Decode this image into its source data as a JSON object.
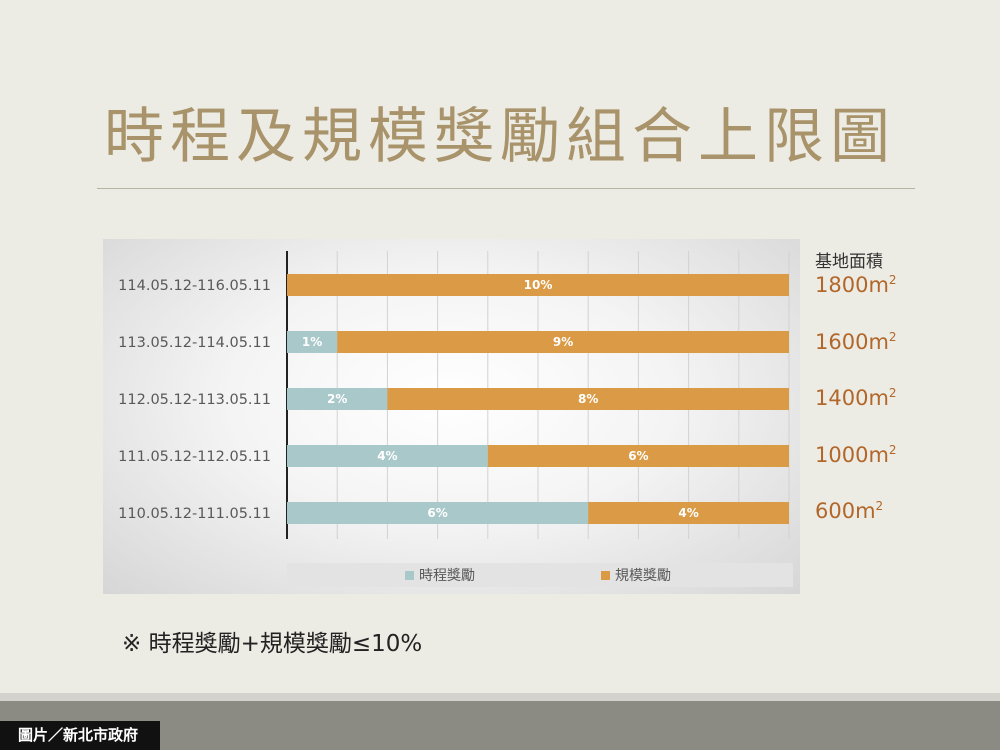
{
  "page": {
    "title": "時程及規模獎勵組合上限圖",
    "area_header": "基地面積",
    "footnote": "※ 時程獎勵+規模獎勵≤10%",
    "credit": "圖片／新北市政府"
  },
  "area_values": [
    {
      "base": "1800m",
      "sup": "2"
    },
    {
      "base": "1600m",
      "sup": "2"
    },
    {
      "base": "1400m",
      "sup": "2"
    },
    {
      "base": "1000m",
      "sup": "2"
    },
    {
      "base": "600m",
      "sup": "2"
    }
  ],
  "chart_data": {
    "type": "bar",
    "orientation": "horizontal",
    "stacked": true,
    "categories": [
      "114.05.12-116.05.11",
      "113.05.12-114.05.11",
      "112.05.12-113.05.11",
      "111.05.12-112.05.11",
      "110.05.12-111.05.11"
    ],
    "series": [
      {
        "name": "時程獎勵",
        "values": [
          0,
          1,
          2,
          4,
          6
        ],
        "labels": [
          "",
          "1%",
          "2%",
          "4%",
          "6%"
        ],
        "color": "#a9c8ca"
      },
      {
        "name": "規模獎勵",
        "values": [
          10,
          9,
          8,
          6,
          4
        ],
        "labels": [
          "10%",
          "9%",
          "8%",
          "6%",
          "4%"
        ],
        "color": "#db9a45"
      }
    ],
    "xlim": [
      0,
      10
    ],
    "grid": true,
    "legend": "bottom"
  }
}
